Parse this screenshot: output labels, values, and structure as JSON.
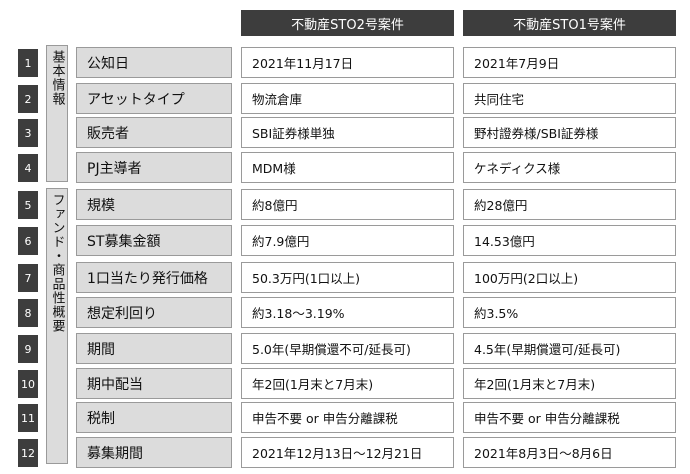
{
  "columns": [
    "不動産STO2号案件",
    "不動産STO1号案件"
  ],
  "groups": [
    "基本情報",
    "ファンド・商品性概要"
  ],
  "rows": [
    {
      "num": "1",
      "label": "公知日",
      "sto2": "2021年11月17日",
      "sto1": "2021年7月9日"
    },
    {
      "num": "2",
      "label": "アセットタイプ",
      "sto2": "物流倉庫",
      "sto1": "共同住宅"
    },
    {
      "num": "3",
      "label": "販売者",
      "sto2": "SBI証券様単独",
      "sto1": "野村證券様/SBI証券様"
    },
    {
      "num": "4",
      "label": "PJ主導者",
      "sto2": "MDM様",
      "sto1": "ケネディクス様"
    },
    {
      "num": "5",
      "label": "規模",
      "sto2": "約8億円",
      "sto1": "約28億円"
    },
    {
      "num": "6",
      "label": "ST募集金額",
      "sto2": "約7.9億円",
      "sto1": "14.53億円"
    },
    {
      "num": "7",
      "label": "1口当たり発行価格",
      "sto2": "50.3万円(1口以上)",
      "sto1": "100万円(2口以上)"
    },
    {
      "num": "8",
      "label": "想定利回り",
      "sto2": "約3.18～3.19%",
      "sto1": "約3.5%"
    },
    {
      "num": "9",
      "label": "期間",
      "sto2": "5.0年(早期償還不可/延長可)",
      "sto1": "4.5年(早期償還可/延長可)"
    },
    {
      "num": "10",
      "label": "期中配当",
      "sto2": "年2回(1月末と7月末)",
      "sto1": "年2回(1月末と7月末)"
    },
    {
      "num": "11",
      "label": "税制",
      "sto2": "申告不要 or 申告分離課税",
      "sto1": "申告不要 or 申告分離課税"
    },
    {
      "num": "12",
      "label": "募集期間",
      "sto2": "2021年12月13日～12月21日",
      "sto1": "2021年8月3日～8月6日"
    }
  ]
}
